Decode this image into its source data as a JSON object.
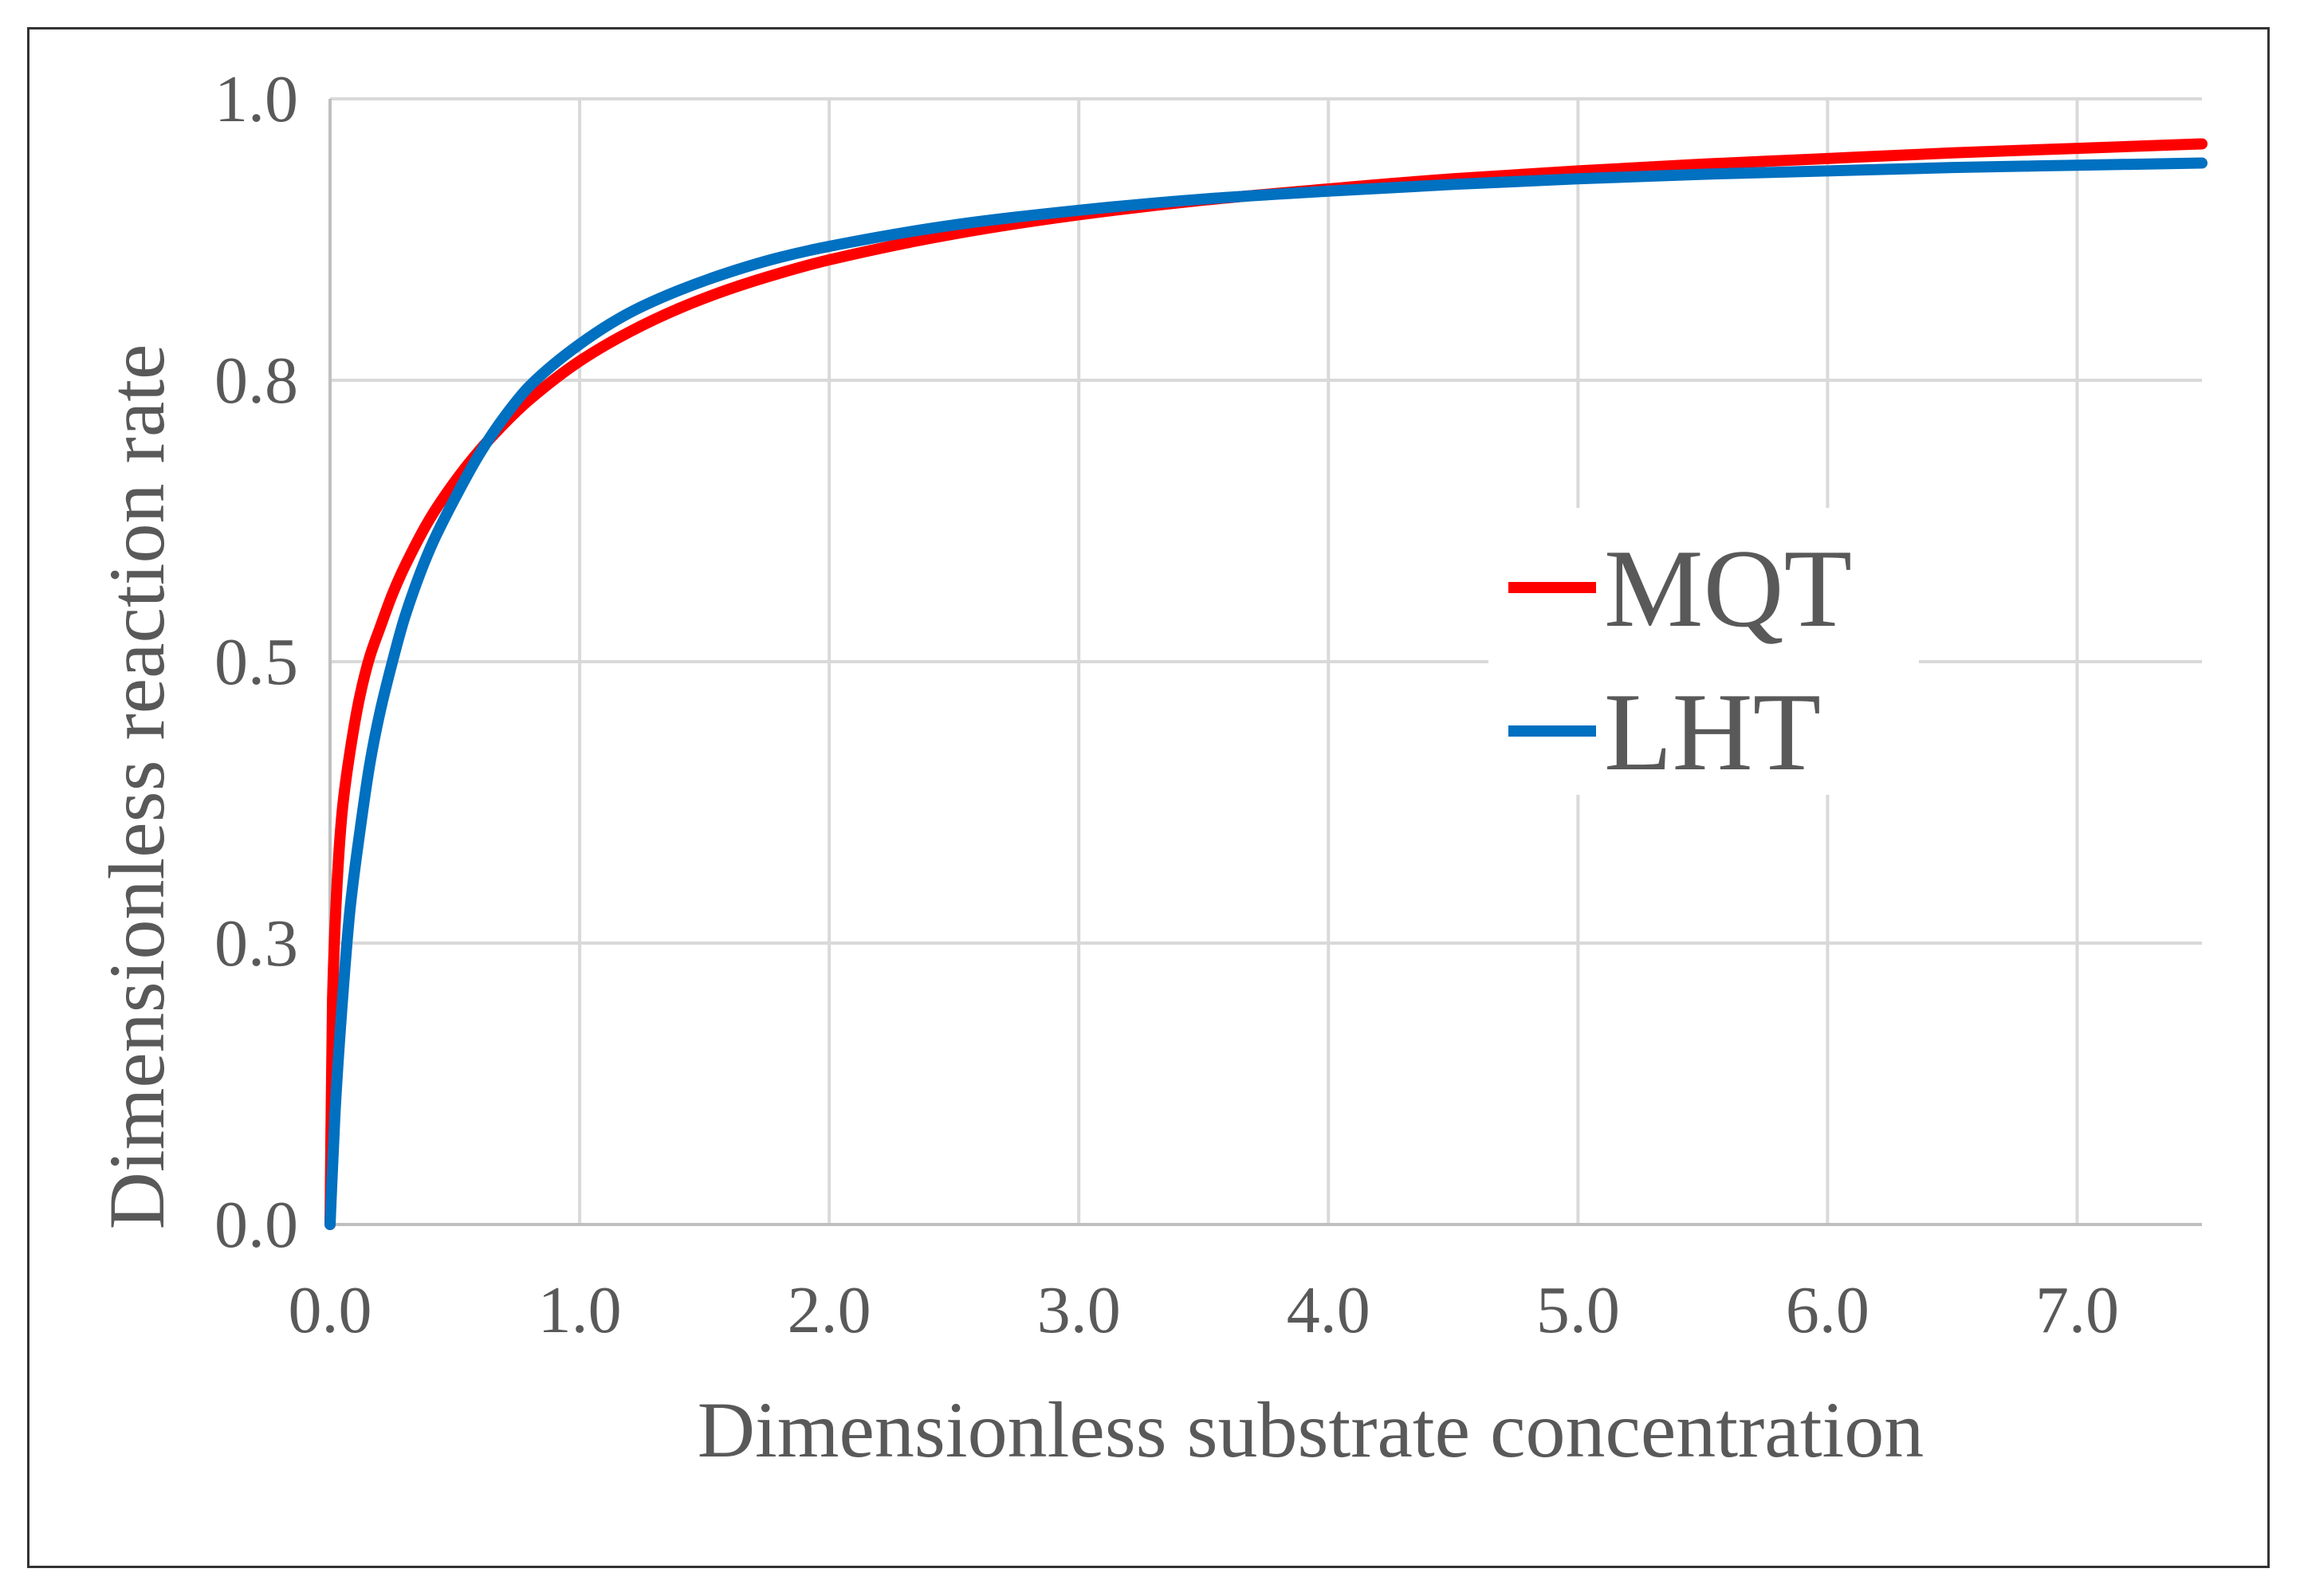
{
  "chart_data": {
    "type": "line",
    "title": "",
    "xlabel": "Dimensionless substrate concentration",
    "ylabel": "Dimensionless reaction rate",
    "xlim": [
      0,
      7.5
    ],
    "ylim": [
      0,
      1.0
    ],
    "x_ticks": [
      0,
      1,
      2,
      3,
      4,
      5,
      6,
      7
    ],
    "x_tick_labels": [
      "0.0",
      "1.0",
      "2.0",
      "3.0",
      "4.0",
      "5.0",
      "6.0",
      "7.0"
    ],
    "y_ticks": [
      0,
      0.25,
      0.5,
      0.75,
      1.0
    ],
    "y_tick_labels": [
      "0.0",
      "0.3",
      "0.5",
      "0.8",
      "1.0"
    ],
    "grid": true,
    "legend_position": "right-center",
    "series": [
      {
        "name": "MQT",
        "color": "#ff0000",
        "x": [
          0,
          0.01,
          0.03,
          0.05,
          0.08,
          0.12,
          0.16,
          0.2,
          0.25,
          0.3,
          0.4,
          0.5,
          0.6,
          0.7,
          0.8,
          1.0,
          1.2,
          1.4,
          1.6,
          1.8,
          2.0,
          2.5,
          3.0,
          3.5,
          4.0,
          4.5,
          5.0,
          5.5,
          6.0,
          6.5,
          7.0,
          7.5
        ],
        "y": [
          0,
          0.2,
          0.31,
          0.37,
          0.42,
          0.47,
          0.505,
          0.53,
          0.56,
          0.585,
          0.627,
          0.66,
          0.688,
          0.712,
          0.733,
          0.767,
          0.793,
          0.814,
          0.831,
          0.845,
          0.857,
          0.88,
          0.897,
          0.91,
          0.92,
          0.929,
          0.936,
          0.942,
          0.947,
          0.952,
          0.956,
          0.96
        ]
      },
      {
        "name": "LHT",
        "color": "#0070c0",
        "x": [
          0,
          0.02,
          0.05,
          0.08,
          0.12,
          0.16,
          0.2,
          0.25,
          0.3,
          0.4,
          0.5,
          0.6,
          0.7,
          0.8,
          1.0,
          1.2,
          1.4,
          1.6,
          1.8,
          2.0,
          2.5,
          3.0,
          3.5,
          4.0,
          4.5,
          5.0,
          5.5,
          6.0,
          6.5,
          7.0,
          7.5
        ],
        "y": [
          0,
          0.1,
          0.2,
          0.28,
          0.35,
          0.41,
          0.455,
          0.5,
          0.54,
          0.6,
          0.645,
          0.685,
          0.718,
          0.745,
          0.782,
          0.81,
          0.83,
          0.846,
          0.859,
          0.869,
          0.888,
          0.901,
          0.911,
          0.918,
          0.924,
          0.929,
          0.933,
          0.936,
          0.939,
          0.941,
          0.943
        ]
      }
    ]
  }
}
